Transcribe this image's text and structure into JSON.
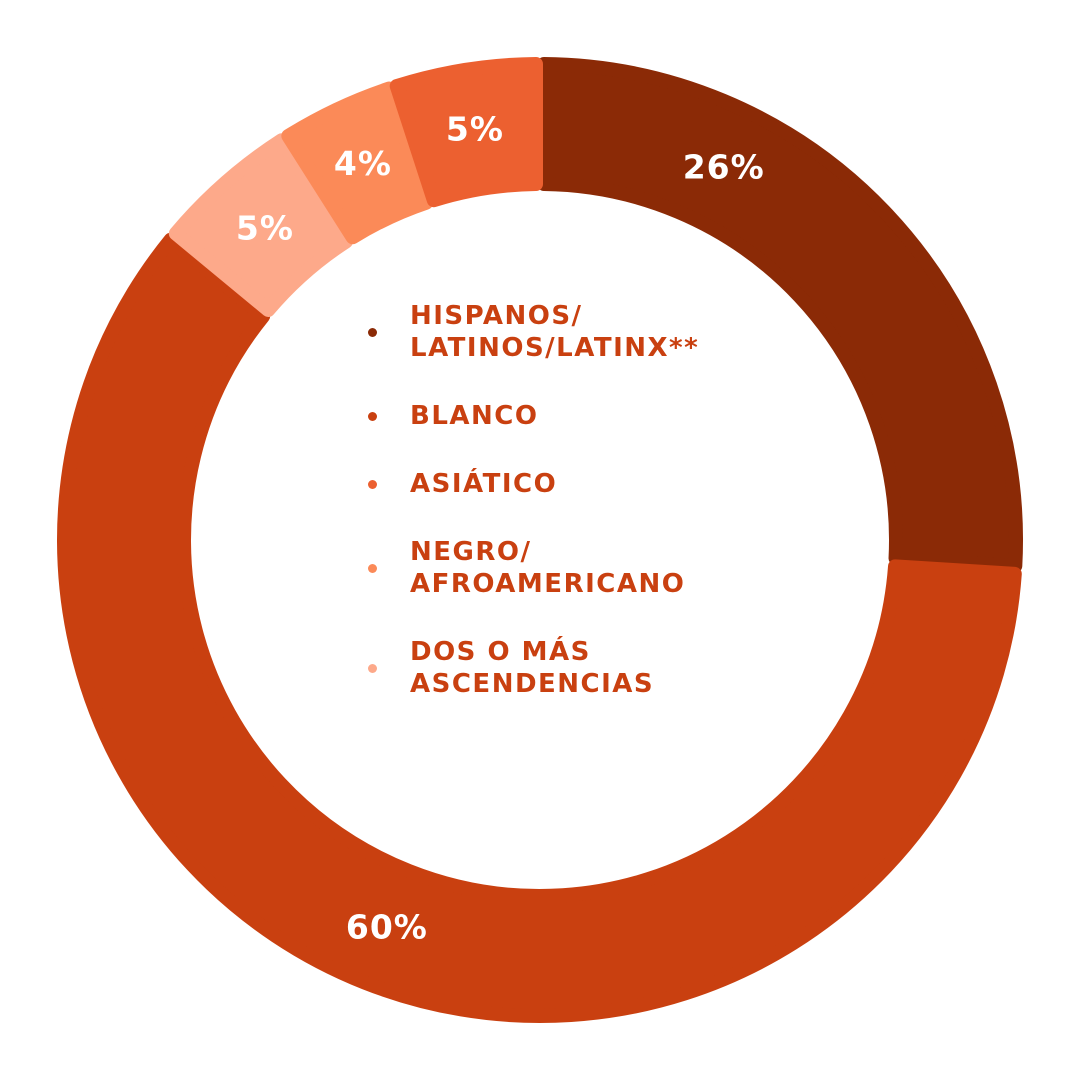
{
  "chart_data": {
    "type": "pie",
    "style": "donut",
    "title": "",
    "slices": [
      {
        "label": "HISPANOS/\nLATINOS/LATINX**",
        "value": 26,
        "display": "26%",
        "color": "#8b2a06"
      },
      {
        "label": "BLANCO",
        "value": 60,
        "display": "60%",
        "color": "#c94010"
      },
      {
        "label": "ASIÁTICO",
        "value": 5,
        "display": "5%",
        "color": "#ec6030"
      },
      {
        "label": "NEGRO/\nAFROAMERICANO",
        "value": 4,
        "display": "4%",
        "color": "#fb8a58"
      },
      {
        "label": "DOS O MÁS\nASCENDENCIAS",
        "value": 5,
        "display": "5%",
        "color": "#fda98a"
      }
    ],
    "legend_position": "center",
    "text_color": "#c94010"
  }
}
